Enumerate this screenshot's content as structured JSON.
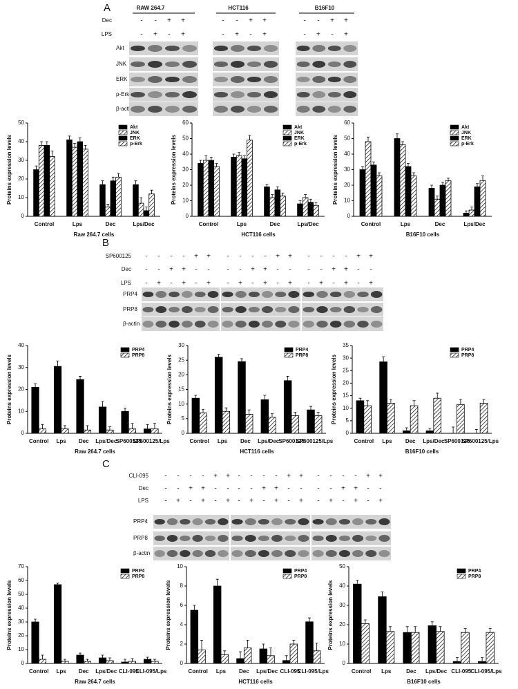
{
  "figure": {
    "panels": [
      {
        "label": "A",
        "cell_lines": [
          "RAW 264.7",
          "HCT116",
          "B16F10"
        ],
        "treatments": [
          {
            "name": "Dec",
            "signs": [
              "-",
              "-",
              "+",
              "+"
            ]
          },
          {
            "name": "LPS",
            "signs": [
              "-",
              "+",
              "-",
              "+"
            ]
          }
        ],
        "blot_rows": [
          "Akt",
          "JNK",
          "ERK",
          "p-Erk",
          "β-actin"
        ]
      },
      {
        "label": "B",
        "treatments": [
          {
            "name": "SP600125",
            "signs": [
              "-",
              "-",
              "-",
              "-",
              "+",
              "+"
            ]
          },
          {
            "name": "Dec",
            "signs": [
              "-",
              "-",
              "+",
              "+",
              "-",
              "-"
            ]
          },
          {
            "name": "LPS",
            "signs": [
              "-",
              "+",
              "-",
              "+",
              "-",
              "+"
            ]
          }
        ],
        "blot_rows": [
          "PRP4",
          "PRP8",
          "β-actin"
        ]
      },
      {
        "label": "C",
        "treatments": [
          {
            "name": "CLI-095",
            "signs": [
              "-",
              "-",
              "-",
              "-",
              "+",
              "+"
            ]
          },
          {
            "name": "Dec",
            "signs": [
              "-",
              "-",
              "+",
              "+",
              "-",
              "-"
            ]
          },
          {
            "name": "LPS",
            "signs": [
              "-",
              "+",
              "-",
              "+",
              "-",
              "+"
            ]
          }
        ],
        "blot_rows": [
          "PRP4",
          "PRP8",
          "β-actin"
        ]
      }
    ]
  },
  "chart_data": [
    {
      "type": "bar",
      "ylabel": "Proteins expression levels",
      "xlabel": "Raw 264.7 cells",
      "categories": [
        "Control",
        "Lps",
        "Dec",
        "Lps/Dec"
      ],
      "ylim": [
        0,
        50
      ],
      "yticks": [
        0,
        10,
        20,
        30,
        40,
        50
      ],
      "legend": "upper right",
      "series": [
        {
          "name": "Akt",
          "color": "#000000",
          "pattern": "solid",
          "values": [
            25,
            41,
            17,
            17
          ],
          "errors": [
            2,
            2,
            2,
            2
          ]
        },
        {
          "name": "JNK",
          "color": "#000000",
          "pattern": "hatch",
          "values": [
            38,
            37,
            5,
            7
          ],
          "errors": [
            2,
            2,
            1.5,
            3
          ]
        },
        {
          "name": "ERK",
          "color": "#000000",
          "pattern": "solid",
          "values": [
            38,
            40,
            19,
            3
          ],
          "errors": [
            2,
            2,
            2,
            2
          ]
        },
        {
          "name": "p-Erk",
          "color": "#000000",
          "pattern": "hatch",
          "values": [
            32,
            36,
            21,
            12
          ],
          "errors": [
            3,
            2,
            2,
            2
          ]
        }
      ]
    },
    {
      "type": "bar",
      "ylabel": "Proteins expression levels",
      "xlabel": "HCT116 cells",
      "categories": [
        "Control",
        "Lps",
        "Dec",
        "Lps/Dec"
      ],
      "ylim": [
        0,
        60
      ],
      "yticks": [
        0,
        10,
        20,
        30,
        40,
        50,
        60
      ],
      "legend": "upper right",
      "series": [
        {
          "name": "Akt",
          "color": "#000000",
          "pattern": "solid",
          "values": [
            34,
            38,
            19,
            8
          ],
          "errors": [
            2,
            2,
            1.5,
            2
          ]
        },
        {
          "name": "JNK",
          "color": "#000000",
          "pattern": "hatch",
          "values": [
            36,
            39,
            12,
            12
          ],
          "errors": [
            3,
            2,
            2,
            2
          ]
        },
        {
          "name": "ERK",
          "color": "#000000",
          "pattern": "solid",
          "values": [
            36,
            37,
            17,
            9
          ],
          "errors": [
            2,
            2,
            2,
            2
          ]
        },
        {
          "name": "p-Erk",
          "color": "#000000",
          "pattern": "hatch",
          "values": [
            32,
            49,
            13,
            7
          ],
          "errors": [
            2,
            3,
            2,
            2
          ]
        }
      ]
    },
    {
      "type": "bar",
      "ylabel": "Proteins expression levels",
      "xlabel": "B16F10 cells",
      "categories": [
        "Control",
        "Lps",
        "Dec",
        "Lps/Dec"
      ],
      "ylim": [
        0,
        60
      ],
      "yticks": [
        0,
        10,
        20,
        30,
        40,
        50,
        60
      ],
      "legend": "upper right",
      "series": [
        {
          "name": "Akt",
          "color": "#000000",
          "pattern": "solid",
          "values": [
            30,
            50,
            18,
            2
          ],
          "errors": [
            2,
            3,
            2,
            1.5
          ]
        },
        {
          "name": "JNK",
          "color": "#000000",
          "pattern": "hatch",
          "values": [
            48,
            46,
            11,
            4
          ],
          "errors": [
            3,
            2,
            2,
            2
          ]
        },
        {
          "name": "ERK",
          "color": "#000000",
          "pattern": "solid",
          "values": [
            33,
            32,
            20,
            19
          ],
          "errors": [
            2,
            2,
            2,
            2
          ]
        },
        {
          "name": "p-Erk",
          "color": "#000000",
          "pattern": "hatch",
          "values": [
            26,
            26,
            23,
            23
          ],
          "errors": [
            2,
            2,
            1.5,
            3
          ]
        }
      ]
    },
    {
      "type": "bar",
      "ylabel": "Proteins expression levels",
      "xlabel": "Raw 264.7 cells",
      "categories": [
        "Control",
        "Lps",
        "Dec",
        "Lps/Dec",
        "SP600125",
        "SP600125/Lps"
      ],
      "ylim": [
        0,
        40
      ],
      "yticks": [
        0,
        10,
        20,
        30,
        40
      ],
      "legend": "upper right",
      "series": [
        {
          "name": "PRP4",
          "color": "#000000",
          "pattern": "solid",
          "values": [
            21,
            30.5,
            24.5,
            12,
            10,
            2
          ],
          "errors": [
            1.5,
            2.5,
            1.5,
            2.5,
            1.5,
            2
          ]
        },
        {
          "name": "PRP8",
          "color": "#000000",
          "pattern": "hatch",
          "values": [
            2,
            2,
            1.5,
            1.5,
            2,
            2
          ],
          "errors": [
            2,
            1.5,
            2,
            1.5,
            2.5,
            2.5
          ]
        }
      ]
    },
    {
      "type": "bar",
      "ylabel": "Proteins expression levels",
      "xlabel": "HCT116 cells",
      "categories": [
        "Control",
        "Lps",
        "Dec",
        "Lps/Dec",
        "SP600125",
        "SP600125/Lps"
      ],
      "ylim": [
        0,
        30
      ],
      "yticks": [
        0,
        5,
        10,
        15,
        20,
        25,
        30
      ],
      "legend": "upper right",
      "series": [
        {
          "name": "PRP4",
          "color": "#000000",
          "pattern": "solid",
          "values": [
            12,
            26,
            24.5,
            11.5,
            18,
            8
          ],
          "errors": [
            1,
            1,
            1,
            1.5,
            1.5,
            1.2
          ]
        },
        {
          "name": "PRP8",
          "color": "#000000",
          "pattern": "hatch",
          "values": [
            7,
            7.5,
            6.5,
            5.5,
            6,
            6
          ],
          "errors": [
            1.2,
            1.2,
            1.5,
            1.2,
            1.2,
            1.2
          ]
        }
      ]
    },
    {
      "type": "bar",
      "ylabel": "Proteins expression levels",
      "xlabel": "B16F10 cells",
      "categories": [
        "Control",
        "Lps",
        "Dec",
        "Lps/Dec",
        "SP600125",
        "SP600125/Lps"
      ],
      "ylim": [
        0,
        35
      ],
      "yticks": [
        0,
        5,
        10,
        15,
        20,
        25,
        30,
        35
      ],
      "legend": "upper right",
      "series": [
        {
          "name": "PRP4",
          "color": "#000000",
          "pattern": "solid",
          "values": [
            13,
            28.5,
            1,
            1,
            0,
            0
          ],
          "errors": [
            1,
            2,
            1.2,
            1,
            2.5,
            1.5
          ]
        },
        {
          "name": "PRP8",
          "color": "#000000",
          "pattern": "hatch",
          "values": [
            11,
            12,
            11,
            14,
            11.5,
            12
          ],
          "errors": [
            2,
            1.5,
            2,
            2,
            2,
            1.5
          ]
        }
      ]
    },
    {
      "type": "bar",
      "ylabel": "Proteins expression levels",
      "xlabel": "Raw 264.7 cells",
      "categories": [
        "Control",
        "Lps",
        "Dec",
        "Lps/Dec",
        "CLI-095",
        "CLI-095/Lps"
      ],
      "ylim": [
        0,
        70
      ],
      "yticks": [
        0,
        10,
        20,
        30,
        40,
        50,
        60,
        70
      ],
      "legend": "upper right",
      "series": [
        {
          "name": "PRP4",
          "color": "#000000",
          "pattern": "solid",
          "values": [
            30,
            57,
            6,
            4,
            1,
            3
          ],
          "errors": [
            2,
            1,
            1.5,
            2,
            2,
            1.5
          ]
        },
        {
          "name": "PRP8",
          "color": "#000000",
          "pattern": "hatch",
          "values": [
            3,
            1.5,
            1.5,
            2,
            1.5,
            1.5
          ],
          "errors": [
            3,
            1.5,
            1.5,
            2,
            2,
            1.5
          ]
        }
      ]
    },
    {
      "type": "bar",
      "ylabel": "Proteins expression levels",
      "xlabel": "HCT116 cells",
      "categories": [
        "Control",
        "Lps",
        "Dec",
        "Lps/Dec",
        "CLI-095",
        "CLI-095/Lps"
      ],
      "ylim": [
        0,
        10
      ],
      "yticks": [
        0,
        2,
        4,
        6,
        8,
        10
      ],
      "legend": "upper right",
      "series": [
        {
          "name": "PRP4",
          "color": "#000000",
          "pattern": "solid",
          "values": [
            5.5,
            8,
            0.5,
            1.5,
            0.3,
            4.3
          ],
          "errors": [
            0.5,
            0.7,
            0.7,
            0.5,
            0.5,
            0.4
          ]
        },
        {
          "name": "PRP8",
          "color": "#000000",
          "pattern": "hatch",
          "values": [
            1.4,
            0.9,
            1.6,
            0.8,
            2,
            1.3
          ],
          "errors": [
            1,
            0.4,
            0.8,
            0.8,
            0.4,
            0.8
          ]
        }
      ]
    },
    {
      "type": "bar",
      "ylabel": "Proteins expression levels",
      "xlabel": "B16F10 cells",
      "categories": [
        "Control",
        "Lps",
        "Dec",
        "Lps/Dec",
        "CLI-095",
        "CLI-095/Lps"
      ],
      "ylim": [
        0,
        50
      ],
      "yticks": [
        0,
        10,
        20,
        30,
        40,
        50
      ],
      "legend": "upper right",
      "series": [
        {
          "name": "PRP4",
          "color": "#000000",
          "pattern": "solid",
          "values": [
            41,
            34.5,
            16,
            19.5,
            1,
            1
          ],
          "errors": [
            2,
            2.5,
            3,
            2,
            2,
            2
          ]
        },
        {
          "name": "PRP8",
          "color": "#000000",
          "pattern": "hatch",
          "values": [
            20.5,
            16.5,
            16,
            16.5,
            16,
            16
          ],
          "errors": [
            2,
            2.5,
            3,
            2.5,
            2,
            2
          ]
        }
      ]
    }
  ]
}
